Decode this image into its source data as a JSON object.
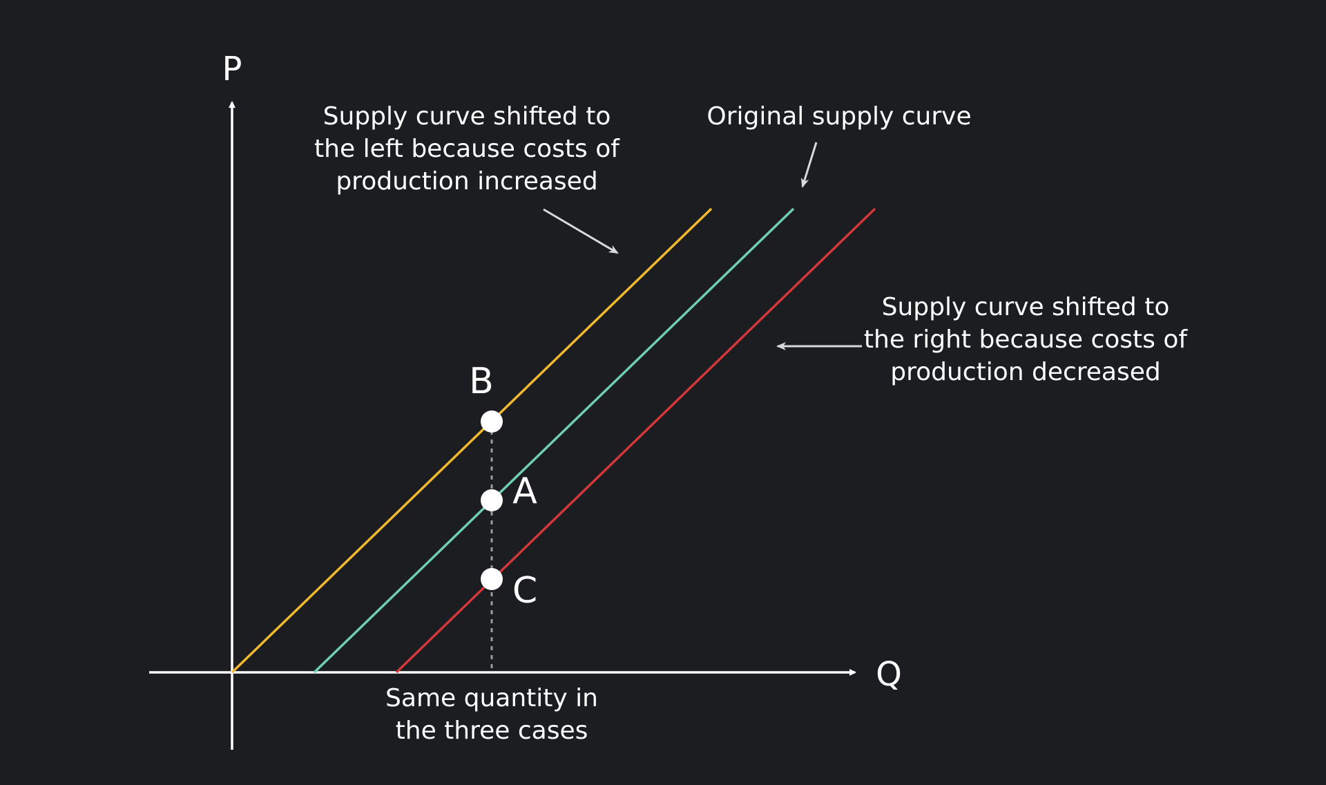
{
  "axes": {
    "y_label": "P",
    "x_label": "Q"
  },
  "annotations": {
    "left_shift": [
      "Supply curve shifted to",
      "the left because costs of",
      "production increased"
    ],
    "original": [
      "Original supply curve"
    ],
    "right_shift": [
      "Supply curve shifted to",
      "the right because costs of",
      "production decreased"
    ],
    "same_quantity": [
      "Same quantity in",
      "the three cases"
    ]
  },
  "points": {
    "b": "B",
    "a": "A",
    "c": "C"
  },
  "colors": {
    "background": "#1c1d20",
    "axis": "#ffffff",
    "left_shift_curve": "#f2b92e",
    "original_curve": "#6fcfb0",
    "right_shift_curve": "#d4373a",
    "pointer_arrow": "#d9d9d9",
    "guide_line": "#9a9a9a",
    "point_fill": "#ffffff"
  }
}
